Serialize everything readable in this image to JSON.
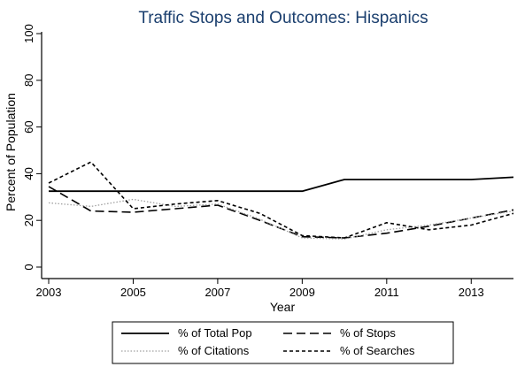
{
  "chart_data": {
    "type": "line",
    "title": "Traffic Stops and Outcomes: Hispanics",
    "xlabel": "Year",
    "ylabel": "Percent of Population",
    "xlim": [
      2003,
      2014
    ],
    "ylim": [
      0,
      100
    ],
    "xticks": [
      2003,
      2005,
      2007,
      2009,
      2011,
      2013
    ],
    "yticks": [
      0,
      20,
      40,
      60,
      80,
      100
    ],
    "grid": false,
    "legend_position": "bottom",
    "series": [
      {
        "name": "% of Total Pop",
        "style": "solid",
        "color": "#000000",
        "x": [
          2003,
          2004,
          2005,
          2006,
          2007,
          2008,
          2009,
          2010,
          2011,
          2012,
          2013,
          2014
        ],
        "y": [
          32.5,
          32.5,
          32.5,
          32.5,
          32.5,
          32.5,
          32.5,
          37.5,
          37.5,
          37.5,
          37.5,
          38.5
        ]
      },
      {
        "name": "% of Stops",
        "style": "longdash",
        "color": "#000000",
        "x": [
          2003,
          2004,
          2005,
          2006,
          2007,
          2008,
          2009,
          2010,
          2011,
          2012,
          2013,
          2014
        ],
        "y": [
          34.5,
          24,
          23.5,
          25,
          26.5,
          20,
          13,
          12.5,
          14.5,
          17.5,
          21,
          24.5
        ]
      },
      {
        "name": "% of Citations",
        "style": "dotted",
        "color": "#a0a0a0",
        "x": [
          2003,
          2004,
          2005,
          2006,
          2007,
          2008,
          2009,
          2010,
          2011,
          2012,
          2013,
          2014
        ],
        "y": [
          27.5,
          26,
          29,
          26,
          27,
          20.5,
          12.5,
          12,
          16,
          18,
          21,
          24
        ]
      },
      {
        "name": "% of Searches",
        "style": "shortdash",
        "color": "#000000",
        "x": [
          2003,
          2004,
          2005,
          2006,
          2007,
          2008,
          2009,
          2010,
          2011,
          2012,
          2013,
          2014
        ],
        "y": [
          36,
          45,
          25,
          27,
          28.5,
          23,
          13.5,
          12.5,
          19,
          16,
          18,
          23
        ]
      }
    ]
  }
}
